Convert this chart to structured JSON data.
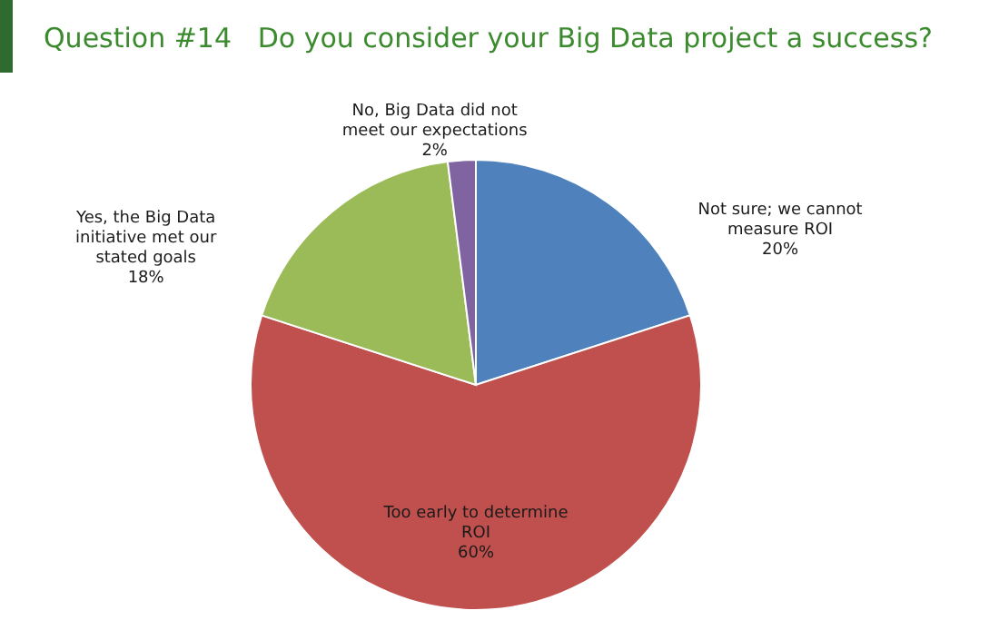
{
  "chart_data": {
    "type": "pie",
    "title": "Question #14   Do you consider your Big Data project a success?",
    "categories": [
      "Not sure; we cannot measure ROI",
      "Too early to determine ROI",
      "Yes, the Big Data initiative met our stated goals",
      "No, Big Data did not meet our expectations"
    ],
    "values": [
      20,
      60,
      18,
      2
    ],
    "colors": [
      "#4f81bd",
      "#c0504d",
      "#9bbb59",
      "#8064a2"
    ],
    "value_labels": [
      "20%",
      "60%",
      "18%",
      "2%"
    ]
  }
}
